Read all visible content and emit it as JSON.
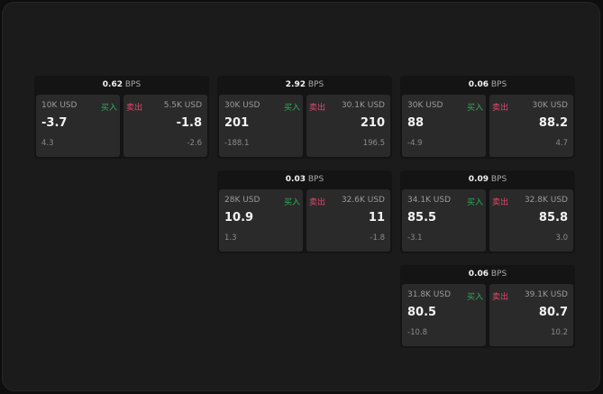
{
  "unit": "BPS",
  "buy_label": "买入",
  "sell_label": "卖出",
  "colors": {
    "buy": "#2fae5c",
    "sell": "#e0476c",
    "background": "#1b1b1b"
  },
  "panels": [
    {
      "spread": "0.62",
      "bid": {
        "qty": "10K USD",
        "price": "-3.7",
        "change": "4.3"
      },
      "ask": {
        "qty": "5.5K USD",
        "price": "-1.8",
        "change": "-2.6"
      }
    },
    {
      "spread": "2.92",
      "bid": {
        "qty": "30K USD",
        "price": "201",
        "change": "-188.1"
      },
      "ask": {
        "qty": "30.1K USD",
        "price": "210",
        "change": "196.5"
      }
    },
    {
      "spread": "0.06",
      "bid": {
        "qty": "30K USD",
        "price": "88",
        "change": "-4.9"
      },
      "ask": {
        "qty": "30K USD",
        "price": "88.2",
        "change": "4.7"
      }
    },
    {
      "spread": "0.03",
      "bid": {
        "qty": "28K USD",
        "price": "10.9",
        "change": "1.3"
      },
      "ask": {
        "qty": "32.6K USD",
        "price": "11",
        "change": "-1.8"
      }
    },
    {
      "spread": "0.09",
      "bid": {
        "qty": "34.1K USD",
        "price": "85.5",
        "change": "-3.1"
      },
      "ask": {
        "qty": "32.8K USD",
        "price": "85.8",
        "change": "3.0"
      }
    },
    {
      "spread": "0.06",
      "bid": {
        "qty": "31.8K USD",
        "price": "80.5",
        "change": "-10.8"
      },
      "ask": {
        "qty": "39.1K USD",
        "price": "80.7",
        "change": "10.2"
      }
    }
  ]
}
